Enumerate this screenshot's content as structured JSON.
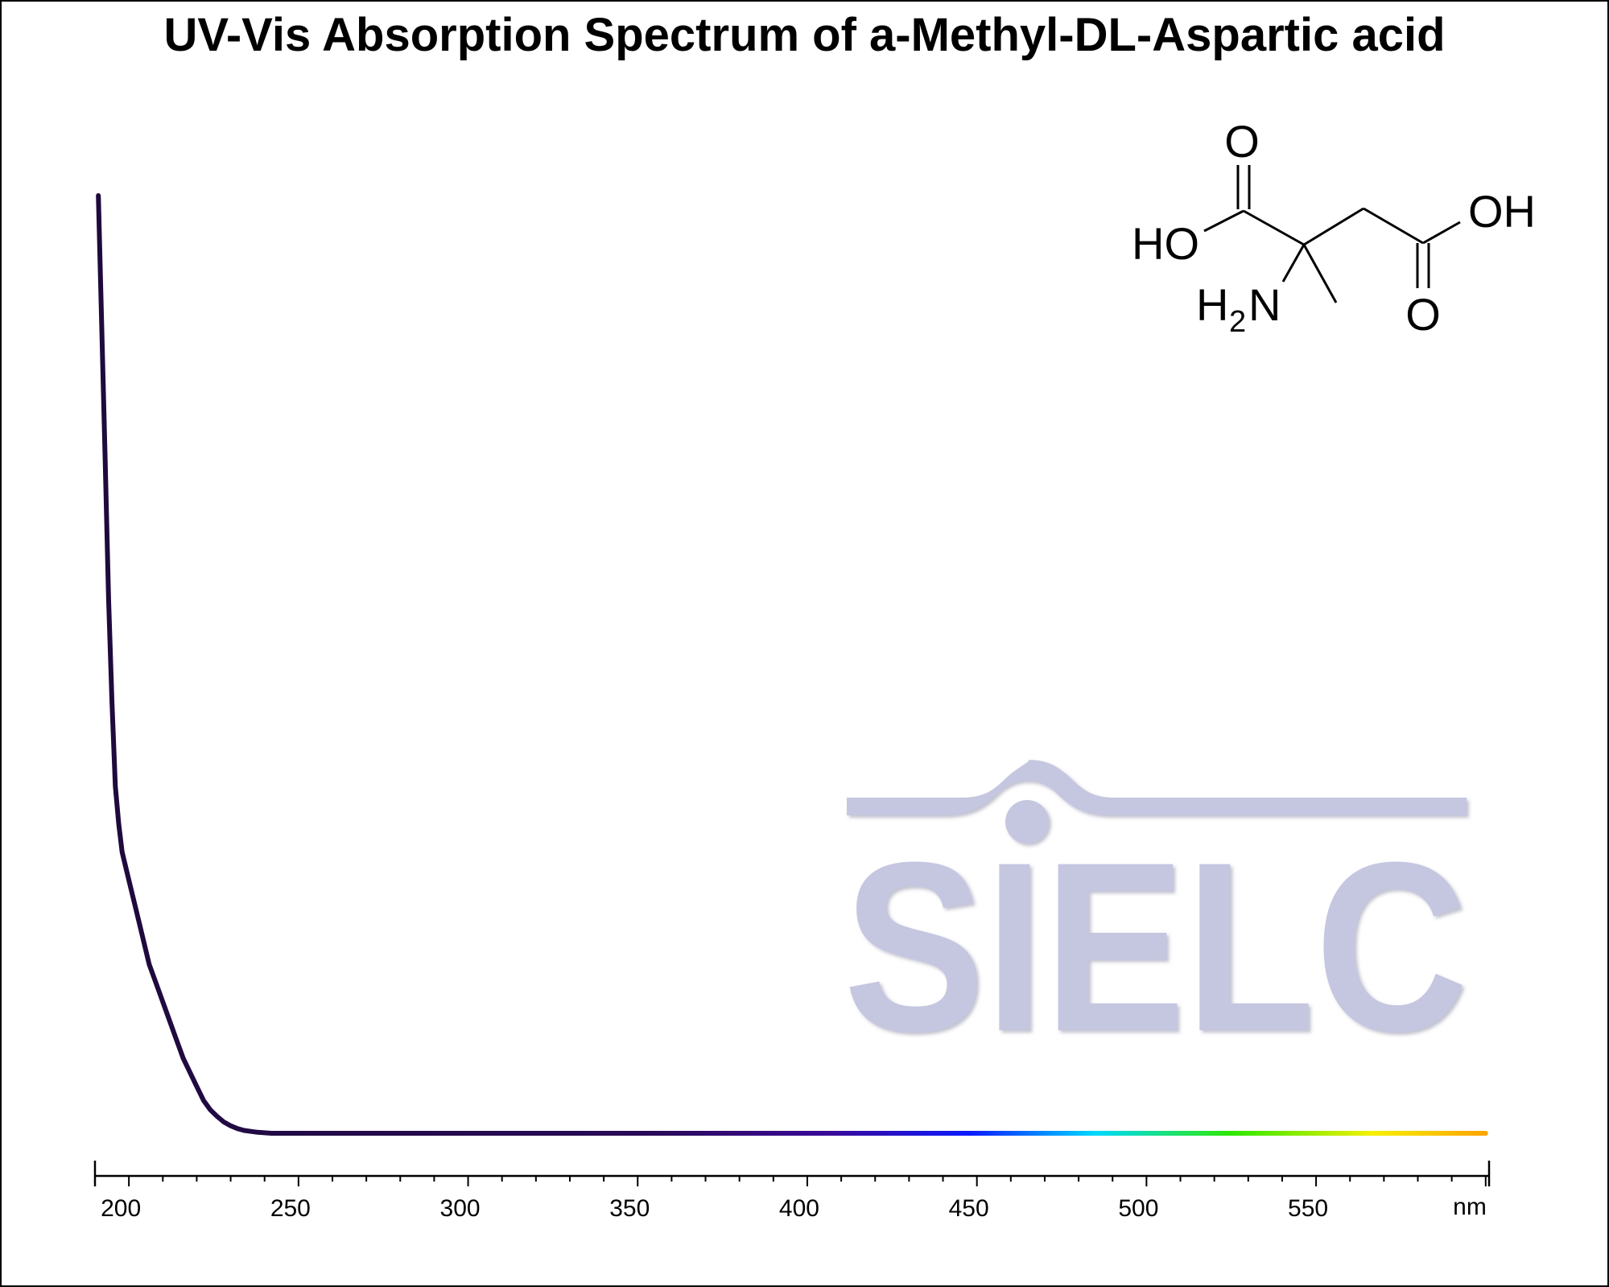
{
  "chart_data": {
    "type": "line",
    "title": "UV-Vis Absorption Spectrum of a-Methyl-DL-Aspartic acid",
    "xlabel": "nm",
    "ylabel": "",
    "xlim": [
      190,
      601
    ],
    "ylim": [
      0,
      1
    ],
    "x_ticks": [
      200,
      250,
      300,
      350,
      400,
      450,
      500,
      550
    ],
    "x_unit_label": "nm",
    "grid": false,
    "gradient": "wavelength-colored (purple to orange)",
    "series": [
      {
        "x": [
          191,
          193,
          194,
          195,
          196,
          197,
          198,
          200,
          202,
          204,
          206,
          208,
          210,
          212,
          214,
          216,
          218,
          220,
          222,
          224,
          226,
          228,
          230,
          232,
          234,
          236,
          238,
          240,
          242,
          244,
          246,
          248,
          250,
          260,
          280,
          300,
          350,
          400,
          450,
          500,
          550,
          600
        ],
        "y": [
          1.0,
          0.72,
          0.57,
          0.46,
          0.37,
          0.33,
          0.3,
          0.27,
          0.24,
          0.21,
          0.18,
          0.16,
          0.14,
          0.12,
          0.1,
          0.08,
          0.065,
          0.05,
          0.035,
          0.025,
          0.018,
          0.012,
          0.008,
          0.005,
          0.003,
          0.002,
          0.001,
          0.0005,
          0.0,
          0.0,
          0.0,
          0.0,
          0.0,
          0.0,
          0.0,
          0.0,
          0.0,
          0.0,
          0.0,
          0.0,
          0.0,
          0.0
        ]
      }
    ]
  },
  "watermark": {
    "text": "SIELC",
    "color": "#c5c6e0"
  },
  "molecule": {
    "name": "a-Methyl-DL-Aspartic acid",
    "labels": {
      "o_top": "O",
      "ho": "HO",
      "oh": "OH",
      "o_bottom": "O",
      "amine_h": "H",
      "amine_sub": "2",
      "amine_n": "N"
    }
  }
}
